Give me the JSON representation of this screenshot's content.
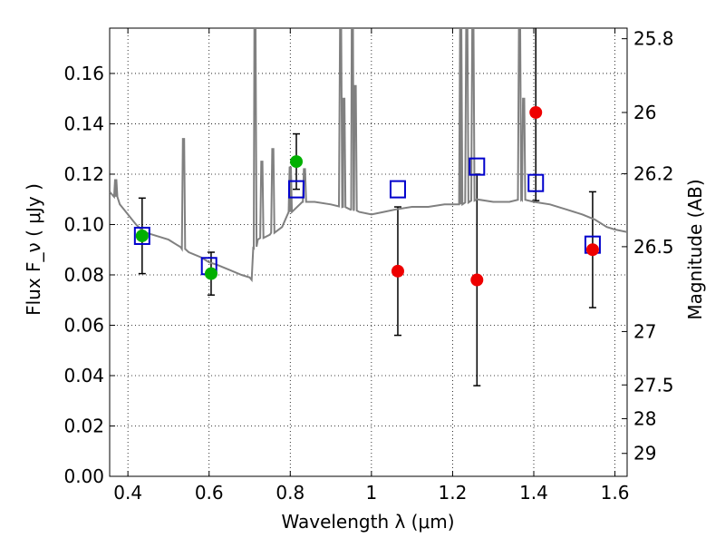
{
  "chart_data": {
    "type": "scatter",
    "xlabel": "Wavelength  λ (μm)",
    "ylabel": "Flux  F_ν  ( μJy )",
    "y2label": "Magnitude (AB)",
    "xlim": [
      0.355,
      1.63
    ],
    "ylim": [
      0.0,
      0.178
    ],
    "grid": true,
    "x_ticks": [
      0.4,
      0.6,
      0.8,
      1.0,
      1.2,
      1.4,
      1.6
    ],
    "x_tick_labels": [
      "0.4",
      "0.6",
      "0.8",
      "1",
      "1.2",
      "1.4",
      "1.6"
    ],
    "y_ticks": [
      0.0,
      0.02,
      0.04,
      0.06,
      0.08,
      0.1,
      0.12,
      0.14,
      0.16
    ],
    "y_tick_labels": [
      "0.00",
      "0.02",
      "0.04",
      "0.06",
      "0.08",
      "0.10",
      "0.12",
      "0.14",
      "0.16"
    ],
    "right_axis_ticks": [
      {
        "label": "25.8",
        "flux": 0.1738
      },
      {
        "label": "26",
        "flux": 0.1445
      },
      {
        "label": "26.2",
        "flux": 0.1202
      },
      {
        "label": "26.5",
        "flux": 0.0912
      },
      {
        "label": "27",
        "flux": 0.0575
      },
      {
        "label": "27.5",
        "flux": 0.0363
      },
      {
        "label": "28",
        "flux": 0.0229
      },
      {
        "label": "29",
        "flux": 0.0091
      }
    ],
    "colors": {
      "spectrum": "#808080",
      "model_box": "#0000cc",
      "green_points": "#00b000",
      "red_points": "#ee0000",
      "errorbar": "#000000"
    },
    "spectrum": {
      "continuum": [
        [
          0.355,
          0.113
        ],
        [
          0.37,
          0.111
        ],
        [
          0.38,
          0.108
        ],
        [
          0.39,
          0.106
        ],
        [
          0.4,
          0.104
        ],
        [
          0.42,
          0.1
        ],
        [
          0.44,
          0.097
        ],
        [
          0.46,
          0.096
        ],
        [
          0.48,
          0.095
        ],
        [
          0.5,
          0.094
        ],
        [
          0.52,
          0.092
        ],
        [
          0.53,
          0.091
        ],
        [
          0.55,
          0.089
        ],
        [
          0.58,
          0.087
        ],
        [
          0.6,
          0.085
        ],
        [
          0.62,
          0.084
        ],
        [
          0.65,
          0.082
        ],
        [
          0.68,
          0.08
        ],
        [
          0.7,
          0.079
        ],
        [
          0.705,
          0.078
        ],
        [
          0.71,
          0.09
        ],
        [
          0.72,
          0.094
        ],
        [
          0.75,
          0.096
        ],
        [
          0.78,
          0.099
        ],
        [
          0.8,
          0.105
        ],
        [
          0.83,
          0.109
        ],
        [
          0.86,
          0.109
        ],
        [
          0.9,
          0.108
        ],
        [
          0.93,
          0.107
        ],
        [
          0.95,
          0.106
        ],
        [
          0.97,
          0.105
        ],
        [
          1.0,
          0.104
        ],
        [
          1.03,
          0.105
        ],
        [
          1.06,
          0.106
        ],
        [
          1.1,
          0.107
        ],
        [
          1.14,
          0.107
        ],
        [
          1.18,
          0.108
        ],
        [
          1.22,
          0.108
        ],
        [
          1.26,
          0.11
        ],
        [
          1.3,
          0.109
        ],
        [
          1.34,
          0.109
        ],
        [
          1.37,
          0.11
        ],
        [
          1.4,
          0.109
        ],
        [
          1.44,
          0.108
        ],
        [
          1.48,
          0.106
        ],
        [
          1.52,
          0.104
        ],
        [
          1.55,
          0.102
        ],
        [
          1.58,
          0.099
        ],
        [
          1.6,
          0.098
        ],
        [
          1.63,
          0.097
        ]
      ],
      "lines": [
        [
          0.37,
          0.118
        ],
        [
          0.537,
          0.134
        ],
        [
          0.713,
          0.178
        ],
        [
          0.73,
          0.125
        ],
        [
          0.757,
          0.13
        ],
        [
          0.8,
          0.123
        ],
        [
          0.835,
          0.122
        ],
        [
          0.924,
          0.178
        ],
        [
          0.932,
          0.15
        ],
        [
          0.953,
          0.178
        ],
        [
          0.96,
          0.155
        ],
        [
          1.22,
          0.178
        ],
        [
          1.235,
          0.178
        ],
        [
          1.25,
          0.178
        ],
        [
          1.365,
          0.178
        ],
        [
          1.375,
          0.15
        ]
      ]
    },
    "series": [
      {
        "marker": "square-open",
        "color": "#0000cc",
        "points": [
          {
            "x": 0.435,
            "y": 0.0955
          },
          {
            "x": 0.6,
            "y": 0.0835
          },
          {
            "x": 0.815,
            "y": 0.114
          },
          {
            "x": 1.065,
            "y": 0.114
          },
          {
            "x": 1.26,
            "y": 0.123
          },
          {
            "x": 1.405,
            "y": 0.1165
          },
          {
            "x": 1.545,
            "y": 0.092
          }
        ]
      },
      {
        "marker": "circle",
        "color": "#00b000",
        "points": [
          {
            "x": 0.435,
            "y": 0.0955,
            "yerr": 0.015
          },
          {
            "x": 0.605,
            "y": 0.0805,
            "yerr": 0.0085
          },
          {
            "x": 0.815,
            "y": 0.125,
            "yerr": 0.011
          }
        ]
      },
      {
        "marker": "circle",
        "color": "#ee0000",
        "points": [
          {
            "x": 1.065,
            "y": 0.0815,
            "yerr": 0.0255
          },
          {
            "x": 1.26,
            "y": 0.078,
            "yerr": 0.042
          },
          {
            "x": 1.405,
            "y": 0.1445,
            "yerr": 0.035
          },
          {
            "x": 1.545,
            "y": 0.09,
            "yerr": 0.023
          }
        ]
      }
    ]
  }
}
